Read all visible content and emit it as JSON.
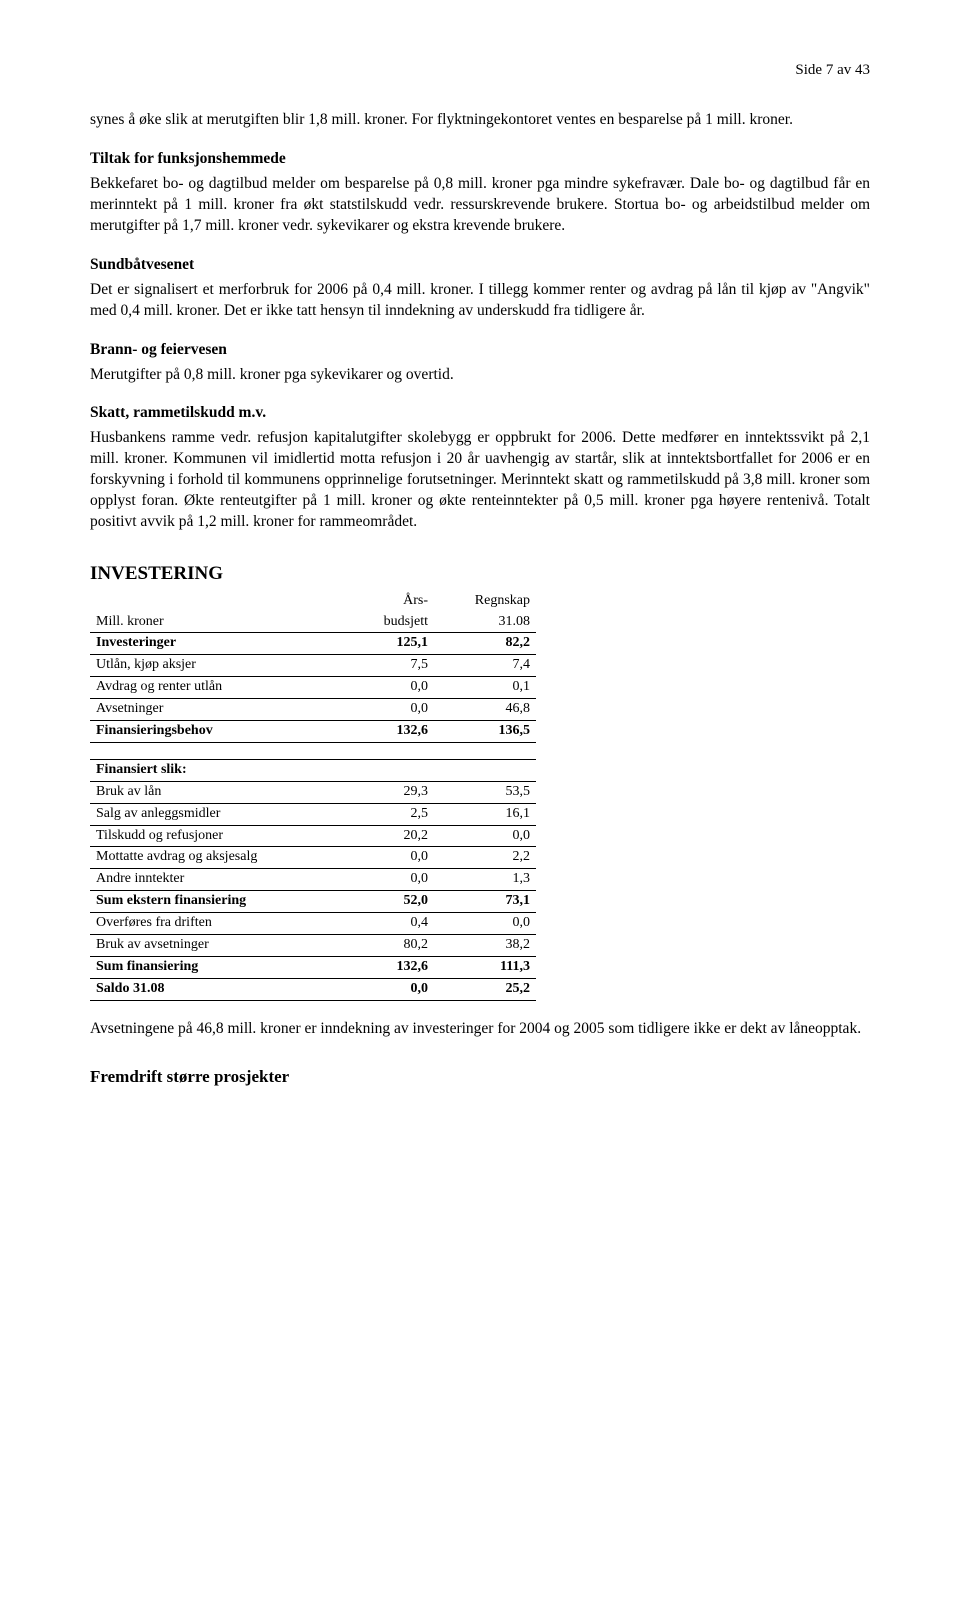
{
  "pageLabel": "Side 7 av 43",
  "para1a": "synes å øke slik at merutgiften blir 1,8 mill. kroner. For flyktningekontoret ventes en besparelse på 1 mill. kroner.",
  "tiltak": {
    "heading": "Tiltak for funksjonshemmede",
    "body": "Bekkefaret bo- og dagtilbud melder om besparelse på 0,8 mill. kroner pga mindre sykefravær. Dale bo- og dagtilbud får en merinntekt på 1 mill. kroner fra økt statstilskudd vedr. ressurskrevende brukere. Stortua bo- og arbeidstilbud melder om merutgifter på 1,7 mill. kroner vedr. sykevikarer og ekstra krevende brukere."
  },
  "sundbat": {
    "heading": "Sundbåtvesenet",
    "body": "Det er signalisert et merforbruk for 2006 på 0,4 mill. kroner. I tillegg kommer renter og avdrag på lån til kjøp av \"Angvik\" med 0,4 mill. kroner. Det er ikke tatt hensyn til inndekning av underskudd fra tidligere år."
  },
  "brann": {
    "heading": "Brann- og feiervesen",
    "body": "Merutgifter på 0,8 mill. kroner pga sykevikarer og overtid."
  },
  "skatt": {
    "heading": "Skatt, rammetilskudd m.v.",
    "body": "Husbankens ramme vedr. refusjon kapitalutgifter skolebygg er oppbrukt for 2006. Dette medfører en inntektssvikt på 2,1 mill. kroner. Kommunen vil imidlertid motta refusjon i 20 år uavhengig av startår, slik at inntektsbortfallet for 2006 er en forskyvning i forhold til kommunens opprinnelige forutsetninger. Merinntekt skatt og rammetilskudd på 3,8 mill. kroner som opplyst foran. Økte renteutgifter på 1 mill. kroner og økte renteinntekter på 0,5 mill. kroner pga høyere rentenivå. Totalt positivt avvik på 1,2 mill. kroner for rammeområdet."
  },
  "investering": {
    "heading": "INVESTERING",
    "colHeaders": {
      "label": "Mill. kroner",
      "c1a": "Års-",
      "c1b": "budsjett",
      "c2a": "Regnskap",
      "c2b": "31.08"
    },
    "rows": [
      {
        "label": "Investeringer",
        "c1": "125,1",
        "c2": "82,2",
        "bold": true,
        "border": true
      },
      {
        "label": "Utlån, kjøp aksjer",
        "c1": "7,5",
        "c2": "7,4",
        "border": true
      },
      {
        "label": "Avdrag og renter utlån",
        "c1": "0,0",
        "c2": "0,1",
        "border": true
      },
      {
        "label": "Avsetninger",
        "c1": "0,0",
        "c2": "46,8",
        "border": true
      },
      {
        "label": "Finansieringsbehov",
        "c1": "132,6",
        "c2": "136,5",
        "bold": true,
        "border": true
      },
      {
        "blank": true,
        "border": true
      },
      {
        "label": "Finansiert slik:",
        "c1": "",
        "c2": "",
        "bold": true,
        "border": true
      },
      {
        "label": "Bruk av lån",
        "c1": "29,3",
        "c2": "53,5",
        "border": true
      },
      {
        "label": "Salg av anleggsmidler",
        "c1": "2,5",
        "c2": "16,1",
        "border": true
      },
      {
        "label": "Tilskudd og refusjoner",
        "c1": "20,2",
        "c2": "0,0",
        "border": true
      },
      {
        "label": "Mottatte avdrag og aksjesalg",
        "c1": "0,0",
        "c2": "2,2",
        "border": true
      },
      {
        "label": "Andre inntekter",
        "c1": "0,0",
        "c2": "1,3",
        "border": true
      },
      {
        "label": "Sum ekstern finansiering",
        "c1": "52,0",
        "c2": "73,1",
        "bold": true,
        "border": true
      },
      {
        "label": "Overføres fra driften",
        "c1": "0,4",
        "c2": "0,0",
        "border": true
      },
      {
        "label": "Bruk av avsetninger",
        "c1": "80,2",
        "c2": "38,2",
        "border": true
      },
      {
        "label": "Sum finansiering",
        "c1": "132,6",
        "c2": "111,3",
        "bold": true,
        "border": true
      },
      {
        "label": "Saldo 31.08",
        "c1": "0,0",
        "c2": "25,2",
        "bold": true,
        "border": true
      }
    ]
  },
  "afterTable": "Avsetningene på 46,8 mill. kroner er inndekning av investeringer for 2004 og 2005 som tidligere ikke er dekt av låneopptak.",
  "fremdrift": "Fremdrift større prosjekter"
}
